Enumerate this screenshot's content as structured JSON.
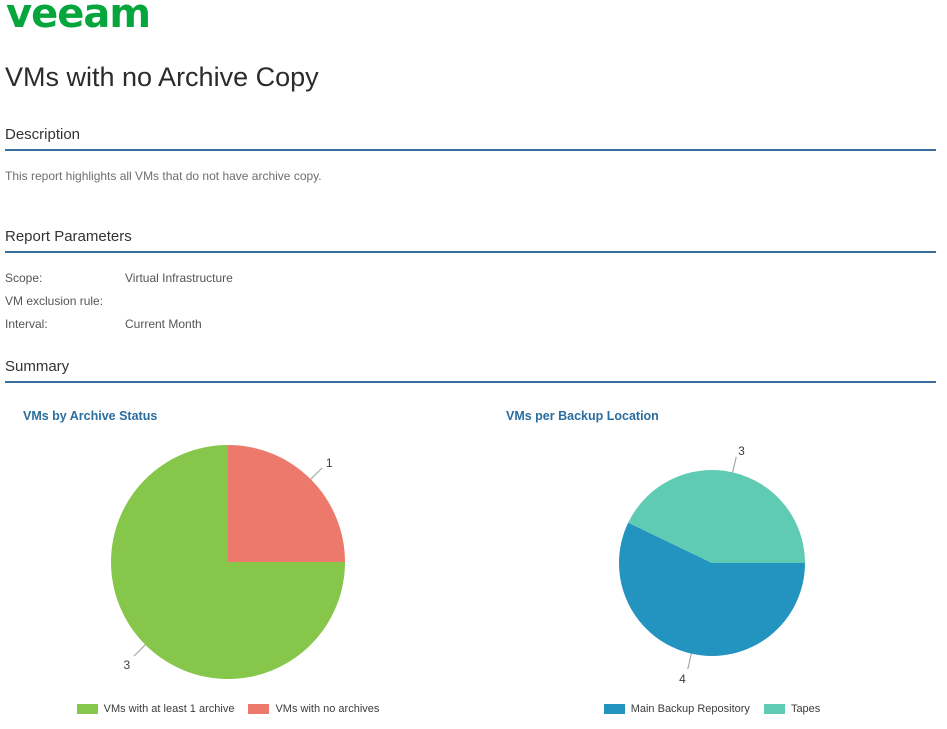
{
  "logo": {
    "text": "veeam",
    "color": "#07A63D"
  },
  "page_title": "VMs with no Archive Copy",
  "sections": {
    "description": {
      "heading": "Description",
      "body": "This report highlights all VMs that do not have archive copy."
    },
    "report_parameters": {
      "heading": "Report Parameters",
      "rows": [
        {
          "label": "Scope:",
          "value": "Virtual Infrastructure"
        },
        {
          "label": "VM exclusion rule:",
          "value": ""
        },
        {
          "label": "Interval:",
          "value": "Current Month"
        }
      ]
    },
    "summary": {
      "heading": "Summary"
    }
  },
  "chart_data": [
    {
      "type": "pie",
      "title": "VMs by Archive Status",
      "categories": [
        "VMs with at least 1 archive",
        "VMs with no archives"
      ],
      "values": [
        3,
        1
      ],
      "labels": [
        "3",
        "1"
      ],
      "colors": [
        "#86C64A",
        "#EC796B"
      ],
      "start_angle_deg": 90,
      "direction": "clockwise",
      "legend_position": "bottom",
      "callout_line_color": "#999999",
      "label_color": "#404040"
    },
    {
      "type": "pie",
      "title": "VMs per Backup Location",
      "categories": [
        "Main Backup Repository",
        "Tapes"
      ],
      "values": [
        4,
        3
      ],
      "labels": [
        "4",
        "3"
      ],
      "colors": [
        "#2394C0",
        "#60CBB3"
      ],
      "start_angle_deg": 90,
      "direction": "clockwise",
      "legend_position": "bottom",
      "callout_line_color": "#999999",
      "label_color": "#404040"
    }
  ]
}
